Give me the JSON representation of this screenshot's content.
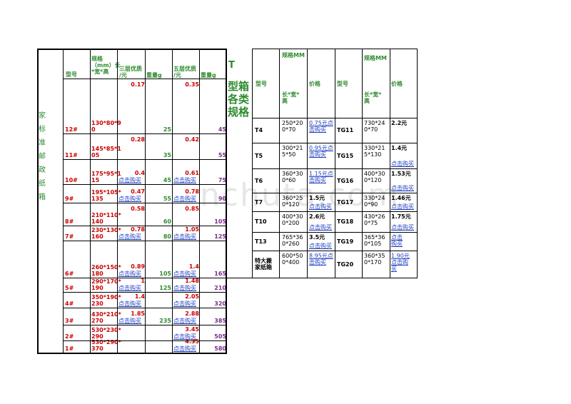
{
  "left": {
    "side_label": "家\n标\n准\n邮\n政\n纸\n箱",
    "headers": {
      "model": "型号",
      "spec": "规格\n（mm）长\n*宽*高",
      "three_price": "三层优质\n/元",
      "weight_a": "重量g",
      "five_price": "五层优质\n/元",
      "weight_b": "重量g"
    },
    "rows": [
      {
        "model": "12#",
        "spec": "130*80*9\n0",
        "p3": "0.17",
        "w3": "25",
        "p5": "0.35",
        "w5": "45"
      },
      {
        "model": "11#",
        "spec": "145*85*1\n05",
        "p3": "0.28",
        "w3": "35",
        "p5": "0.42",
        "w5": "55"
      },
      {
        "model": "10#",
        "spec": "175*95*1\n15",
        "p3": "0.4",
        "buy3": "点击购买",
        "w3": "45",
        "p5": "0.61",
        "buy5": "点击购买",
        "w5": "75"
      },
      {
        "model": "9#",
        "spec": "195*105*\n135",
        "p3": "0.47",
        "buy3": "点击购买",
        "w3": "55",
        "p5": "0.78",
        "buy5": "点击购买",
        "w5": "90"
      },
      {
        "model": "8#",
        "spec": "210*110*\n140",
        "p3": "0.58",
        "w3": "60",
        "p5": "0.85",
        "w5": "105"
      },
      {
        "model": "7#",
        "spec": "230*130*\n160",
        "p3": "0.78",
        "buy3": "点击购买",
        "w3": "80",
        "p5": "1.05",
        "buy5": "点击购买",
        "w5": "125"
      },
      {
        "model": "6#",
        "spec": "260*150*\n180",
        "p3": "0.89",
        "buy3": "点击购买",
        "w3": "105",
        "p5": "1.4",
        "buy5": "点击购买",
        "w5": "165"
      },
      {
        "model": "5#",
        "spec": "290*170*\n190",
        "p3": "1",
        "buy3": "点击购买",
        "w3": "125",
        "p5": "1.48",
        "buy5": "点击购买",
        "w5": "210"
      },
      {
        "model": "4#",
        "spec": "350*190*\n230",
        "p3": "1.4",
        "buy3": "点击购买",
        "w3": "",
        "p5": "2.05",
        "buy5": "点击购买",
        "w5": "320"
      },
      {
        "model": "3#",
        "spec": "430*210*\n270",
        "p3": "1.85",
        "buy3": "点击购买",
        "w3": "235",
        "p5": "2.88",
        "buy5": "点击购买",
        "w5": "385"
      },
      {
        "model": "2#",
        "spec": "530*230*\n290",
        "p3": "",
        "w3": "",
        "p5": "3.45",
        "buy5": "点击购买",
        "w5": "505"
      },
      {
        "model": "1#",
        "spec": "530*290*\n370",
        "p3": "",
        "w3": "",
        "p5": "4.35",
        "buy5": "点击购买",
        "w5": "580"
      }
    ]
  },
  "middle": {
    "t": "T",
    "title": "型箱\n各类\n规格"
  },
  "right": {
    "headers": {
      "model": "型号",
      "spec_top": "规格MM",
      "spec_bottom": "长*宽*\n高",
      "price": "价格",
      "model2": "型号",
      "spec2_top": "规格MM",
      "spec2_bottom": "长*宽*\n高",
      "price2": "价格"
    },
    "rows": [
      {
        "m1": "T4",
        "s1": "250*20\n0*70",
        "p1": "",
        "b1": "0.75元点\n击购买",
        "m2": "TG11",
        "s2": "730*24\n0*70",
        "p2": "2.2元",
        "b2": ""
      },
      {
        "m1": "T5",
        "s1": "300*21\n5*50",
        "p1": "",
        "b1": "0.95元点\n击购买",
        "m2": "TG15",
        "s2": "330*21\n5*130",
        "p2": "1.4元",
        "b2": "点击购买"
      },
      {
        "m1": "T6",
        "s1": "360*30\n0*60",
        "p1": "",
        "b1": "1.15元点\n击购买",
        "m2": "TG16",
        "s2": "400*30\n0*120",
        "p2": "1.53元",
        "b2": "点击购买"
      },
      {
        "m1": "T7",
        "s1": "360*25\n0*120",
        "p1": "1.5元",
        "b1": "点击购买",
        "m2": "TG17",
        "s2": "330*24\n0*90",
        "p2": "1.46元",
        "b2": "点击购买"
      },
      {
        "m1": "T10",
        "s1": "400*30\n0*200",
        "p1": "2.6元",
        "b1": "点击购买",
        "m2": "TG18",
        "s2": "430*26\n0*75",
        "p2": "1.75元",
        "b2": "点击购买"
      },
      {
        "m1": "T13",
        "s1": "765*36\n0*260",
        "p1": "3.5元",
        "b1": "点击购买",
        "m2": "TG19",
        "s2": "365*36\n0*105",
        "p2": "",
        "b2": "点击\n购买"
      },
      {
        "m1": "特大搬\n家纸箱",
        "s1": "600*50\n0*400",
        "p1": "",
        "b1": "8.95元点\n击购买",
        "m2": "TG20",
        "s2": "360*35\n0*170",
        "p2": "",
        "b2": "1.90元\n点击购\n买"
      }
    ]
  },
  "watermark": "nchuta.com"
}
